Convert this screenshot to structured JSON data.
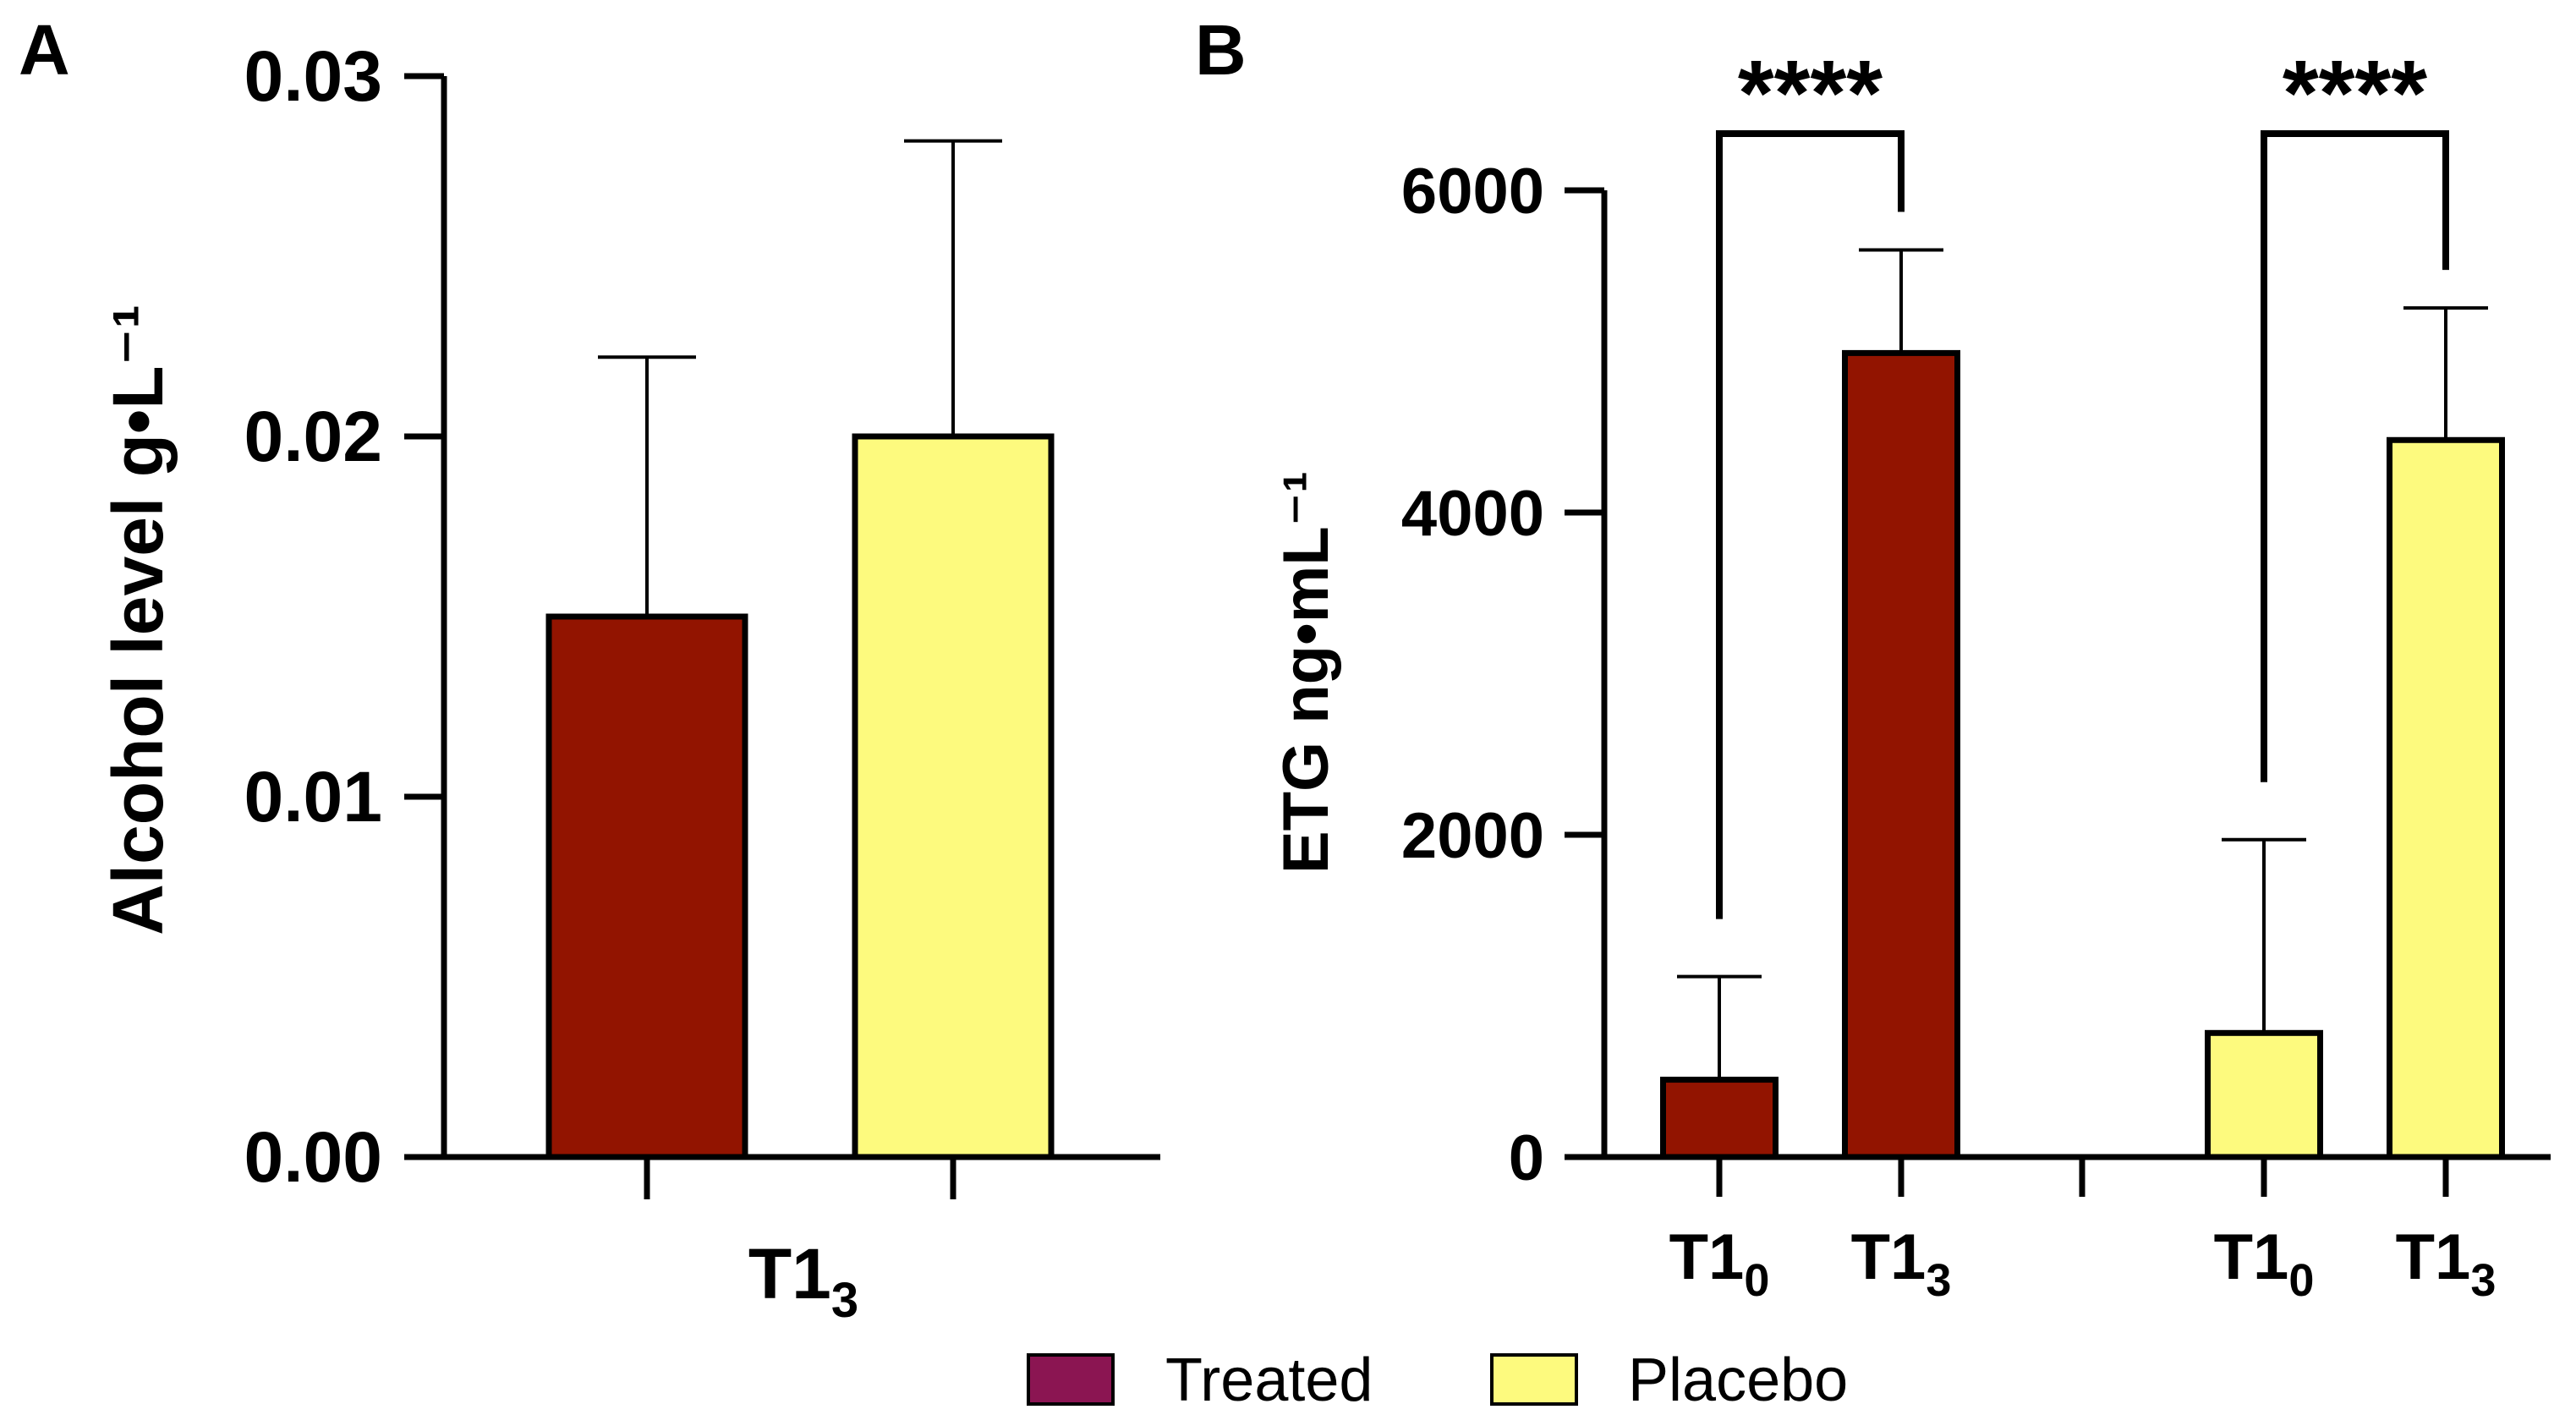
{
  "chart_data": [
    {
      "panel": "A",
      "type": "bar",
      "ylabel": "Alcohol level g•L⁻¹",
      "ylim": [
        0,
        0.03
      ],
      "yticks": [
        0.0,
        0.01,
        0.02,
        0.03
      ],
      "ytick_labels": [
        "0.00",
        "0.01",
        "0.02",
        "0.03"
      ],
      "xlabel": {
        "base": "T1",
        "sub": "3"
      },
      "bars": [
        {
          "group": "Treated",
          "value": 0.015,
          "error": 0.0072
        },
        {
          "group": "Placebo",
          "value": 0.02,
          "error": 0.0082
        }
      ]
    },
    {
      "panel": "B",
      "type": "bar",
      "ylabel": "ETG ng•mL⁻¹",
      "ylim": [
        0,
        6000
      ],
      "yticks": [
        0,
        2000,
        4000,
        6000
      ],
      "ytick_labels": [
        "0",
        "2000",
        "4000",
        "6000"
      ],
      "bars": [
        {
          "group": "Treated",
          "label": "T1",
          "sub": "0",
          "value": 480,
          "error": 640
        },
        {
          "group": "Treated",
          "label": "T1",
          "sub": "3",
          "value": 4990,
          "error": 640
        },
        {
          "group": "Placebo",
          "label": "T1",
          "sub": "0",
          "value": 770,
          "error": 1200
        },
        {
          "group": "Placebo",
          "label": "T1",
          "sub": "3",
          "value": 4450,
          "error": 820
        }
      ],
      "significance": [
        {
          "from": 0,
          "to": 1,
          "label": "****"
        },
        {
          "from": 2,
          "to": 3,
          "label": "****"
        }
      ]
    }
  ],
  "legend": [
    {
      "name": "Treated",
      "color": "#8b1552"
    },
    {
      "name": "Placebo",
      "color": "#fdfa7e"
    }
  ],
  "colors": {
    "treated_bar": "#921400",
    "placebo_bar": "#fdfa7e",
    "axis": "#000000"
  }
}
